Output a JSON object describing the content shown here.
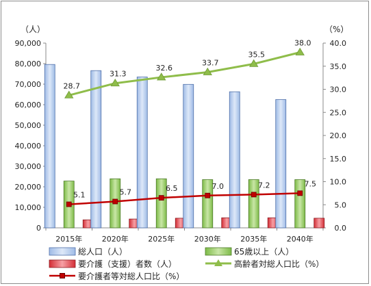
{
  "chart_data": {
    "type": "bar",
    "categories": [
      "2015年",
      "2020年",
      "2025年",
      "2030年",
      "2035年",
      "2040年"
    ],
    "series": [
      {
        "name": "総人口（人）",
        "axis": "left",
        "kind": "bar",
        "color": "#b9cdee",
        "values": [
          79600,
          76600,
          73500,
          69900,
          66300,
          62500
        ]
      },
      {
        "name": "65歳以上（人）",
        "axis": "left",
        "kind": "bar",
        "color": "#9ccf6b",
        "values": [
          22800,
          23900,
          23900,
          23500,
          23500,
          23500
        ]
      },
      {
        "name": "要介護（支援）者数（人）",
        "axis": "left",
        "kind": "bar",
        "color": "#e8474f",
        "values": [
          3900,
          4300,
          4700,
          4900,
          4900,
          4700
        ]
      },
      {
        "name": "高齢者対総人口比（%）",
        "axis": "right",
        "kind": "line",
        "color": "#8fbd4a",
        "marker": "triangle",
        "values": [
          28.7,
          31.3,
          32.6,
          33.7,
          35.5,
          38.0
        ],
        "labels": [
          "28.7",
          "31.3",
          "32.6",
          "33.7",
          "35.5",
          "38.0"
        ]
      },
      {
        "name": "要介護者等対総人口比（%）",
        "axis": "right",
        "kind": "line",
        "color": "#c00000",
        "marker": "square",
        "values": [
          5.1,
          5.7,
          6.5,
          7.0,
          7.2,
          7.5
        ],
        "labels": [
          "5.1",
          "5.7",
          "6.5",
          "7.0",
          "7.2",
          "7.5"
        ]
      }
    ],
    "left_axis": {
      "unit": "（人）",
      "ylim": [
        0,
        90000
      ],
      "ticks": [
        0,
        10000,
        20000,
        30000,
        40000,
        50000,
        60000,
        70000,
        80000,
        90000
      ],
      "tick_labels": [
        "0",
        "10,000",
        "20,000",
        "30,000",
        "40,000",
        "50,000",
        "60,000",
        "70,000",
        "80,000",
        "90,000"
      ]
    },
    "right_axis": {
      "unit": "（%）",
      "ylim": [
        0,
        40
      ],
      "ticks": [
        0,
        5,
        10,
        15,
        20,
        25,
        30,
        35,
        40
      ],
      "tick_labels": [
        "0.0",
        "5.0",
        "10.0",
        "15.0",
        "20.0",
        "25.0",
        "30.0",
        "35.0",
        "40.0"
      ]
    },
    "grid": false,
    "legend_position": "bottom"
  }
}
